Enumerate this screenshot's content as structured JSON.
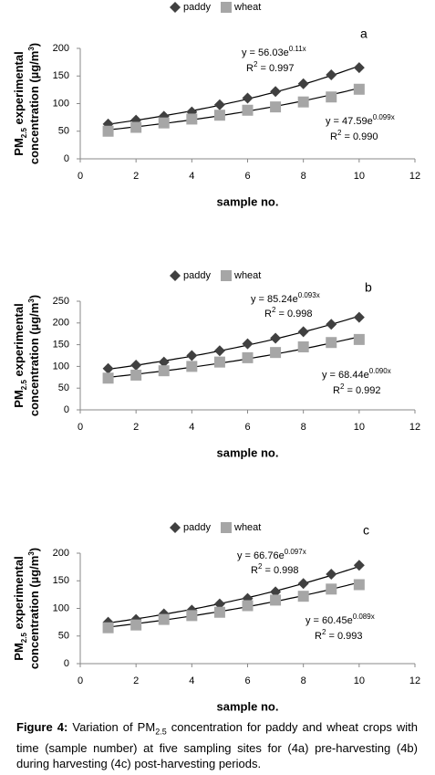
{
  "chart_data": [
    {
      "type": "scatter",
      "panel": "a",
      "ylabel": {
        "line1": [
          "PM",
          "2.5",
          " experimental"
        ],
        "line2": [
          "concentration (µg/m",
          "3",
          ")"
        ]
      },
      "xlabel": "sample no.",
      "x": [
        1,
        2,
        3,
        4,
        5,
        6,
        7,
        8,
        9,
        10
      ],
      "series": [
        {
          "name": "paddy",
          "color": "#404040",
          "marker": "diamond",
          "values": [
            63,
            70,
            77,
            85,
            98,
            110,
            122,
            136,
            152,
            165
          ],
          "equation": {
            "text": "y = 56.03e",
            "sup": "0.11x"
          },
          "r2": {
            "text": "R",
            "sup": "2",
            "rest": " = 0.997"
          }
        },
        {
          "name": "wheat",
          "color": "#a6a6a6",
          "marker": "square",
          "values": [
            50,
            57,
            65,
            72,
            79,
            88,
            94,
            103,
            112,
            126
          ],
          "equation": {
            "text": "y = 47.59e",
            "sup": "0.099x"
          },
          "r2": {
            "text": "R",
            "sup": "2",
            "rest": " = 0.990"
          }
        }
      ],
      "xlim": [
        0,
        12
      ],
      "xticks": [
        0,
        2,
        4,
        6,
        8,
        10,
        12
      ],
      "ylim": [
        0,
        200
      ],
      "yticks": [
        0,
        50,
        100,
        150,
        200
      ],
      "trendline": "exponential"
    },
    {
      "type": "scatter",
      "panel": "b",
      "ylabel": {
        "line1": [
          "PM",
          "2.5",
          " experimental"
        ],
        "line2": [
          "concentration (µg/m",
          "3",
          ")"
        ]
      },
      "xlabel": "sample no.",
      "x": [
        1,
        2,
        3,
        4,
        5,
        6,
        7,
        8,
        9,
        10
      ],
      "series": [
        {
          "name": "paddy",
          "color": "#404040",
          "marker": "diamond",
          "values": [
            95,
            103,
            110,
            125,
            136,
            152,
            165,
            180,
            197,
            213
          ],
          "equation": {
            "text": "y = 85.24e",
            "sup": "0.093x"
          },
          "r2": {
            "text": "R",
            "sup": "2",
            "rest": " = 0.998"
          }
        },
        {
          "name": "wheat",
          "color": "#a6a6a6",
          "marker": "square",
          "values": [
            73,
            80,
            90,
            100,
            110,
            120,
            132,
            145,
            155,
            162
          ],
          "equation": {
            "text": "y = 68.44e",
            "sup": "0.090x"
          },
          "r2": {
            "text": "R",
            "sup": "2",
            "rest": " = 0.992"
          }
        }
      ],
      "xlim": [
        0,
        12
      ],
      "xticks": [
        0,
        2,
        4,
        6,
        8,
        10,
        12
      ],
      "ylim": [
        0,
        250
      ],
      "yticks": [
        0,
        50,
        100,
        150,
        200,
        250
      ],
      "trendline": "exponential"
    },
    {
      "type": "scatter",
      "panel": "c",
      "ylabel": {
        "line1": [
          "PM",
          "2.5",
          " experimental"
        ],
        "line2": [
          "concentration (µg/m",
          "3",
          ")"
        ]
      },
      "xlabel": "sample no.",
      "x": [
        1,
        2,
        3,
        4,
        5,
        6,
        7,
        8,
        9,
        10
      ],
      "series": [
        {
          "name": "paddy",
          "color": "#404040",
          "marker": "diamond",
          "values": [
            75,
            80,
            90,
            97,
            108,
            118,
            130,
            145,
            162,
            178
          ],
          "equation": {
            "text": "y = 66.76e",
            "sup": "0.097x"
          },
          "r2": {
            "text": "R",
            "sup": "2",
            "rest": " = 0.998"
          }
        },
        {
          "name": "wheat",
          "color": "#a6a6a6",
          "marker": "square",
          "values": [
            65,
            70,
            80,
            87,
            93,
            105,
            115,
            122,
            135,
            143
          ],
          "equation": {
            "text": "y = 60.45e",
            "sup": "0.089x"
          },
          "r2": {
            "text": "R",
            "sup": "2",
            "rest": " = 0.993"
          }
        }
      ],
      "xlim": [
        0,
        12
      ],
      "xticks": [
        0,
        2,
        4,
        6,
        8,
        10,
        12
      ],
      "ylim": [
        0,
        200
      ],
      "yticks": [
        0,
        50,
        100,
        150,
        200
      ],
      "trendline": "exponential"
    }
  ],
  "caption": {
    "label": "Figure 4:",
    "text_1": " Variation of PM",
    "sub": "2.5",
    "text_2": " concentration for paddy and wheat crops with time (sample number) at five sampling sites for (4a) pre-harvesting (4b) during harvesting (4c) post-harvesting periods."
  }
}
